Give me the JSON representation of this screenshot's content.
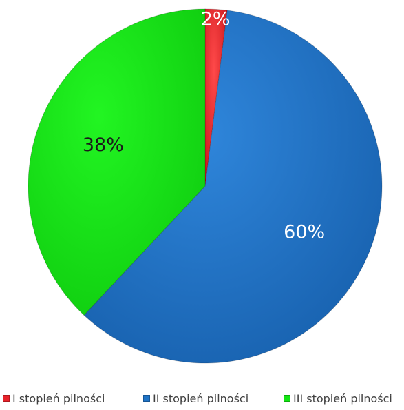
{
  "chart_data": {
    "type": "pie",
    "categories": [
      "I stopień pilności",
      "II stopień pilności",
      "III stopień pilności"
    ],
    "values": [
      2,
      60,
      38
    ],
    "data_labels": [
      "2%",
      "60%",
      "38%"
    ],
    "colors": [
      "#e8222a",
      "#1f73c6",
      "#12e512"
    ],
    "label_colors": [
      "#ffffff",
      "#ffffff",
      "#1a1a1a"
    ],
    "start_angle_deg": 0,
    "direction": "clockwise",
    "legend_position": "bottom"
  }
}
